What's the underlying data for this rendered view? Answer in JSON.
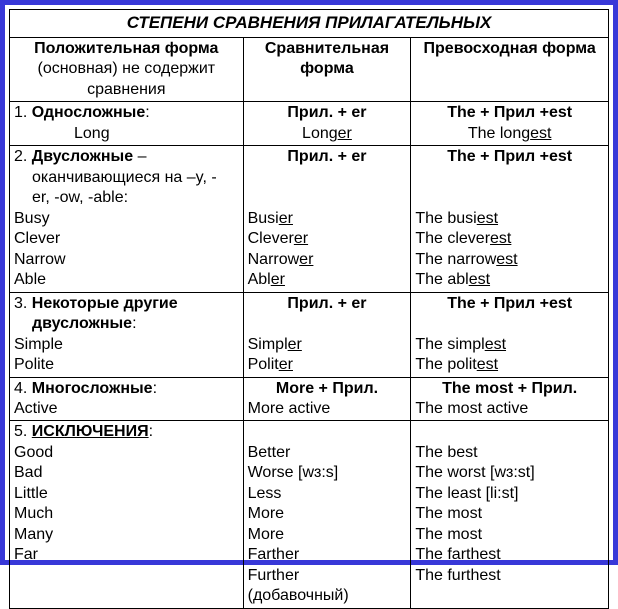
{
  "title": "СТЕПЕНИ СРАВНЕНИЯ ПРИЛАГАТЕЛЬНЫХ",
  "headers": {
    "c1_main": "Положительная форма",
    "c1_sub": "(основная) не содержит сравнения",
    "c2": "Сравнительная форма",
    "c3": "Превосходная форма"
  },
  "r1": {
    "num": "1.  ",
    "title": "Односложные",
    "colon": ":",
    "ex": "Long",
    "c2_rule": "Прил. + er",
    "c2_a": "Long",
    "c2_b": "er",
    "c3_rule": "The + Прил +est",
    "c3_a": "The long",
    "c3_b": "est"
  },
  "r2": {
    "num": "2.  ",
    "title": "Двусложные",
    "dash": " –",
    "desc1": "оканчивающиеся на –y, -",
    "desc2": "er, -ow, -able:",
    "e1": "Busy",
    "e2": "Clever",
    "e3": "Narrow",
    "e4": "Able",
    "c2_rule": "Прил. + er",
    "c2_1a": "Busi",
    "c2_1b": "er",
    "c2_2a": "Clever",
    "c2_2b": "er",
    "c2_3a": "Narrow",
    "c2_3b": "er",
    "c2_4a": "Abl",
    "c2_4b": "er",
    "c3_rule": "The + Прил +est",
    "c3_1a": "The busi",
    "c3_1b": "est",
    "c3_2a": "The clever",
    "c3_2b": "est",
    "c3_3a": "The narrow",
    "c3_3b": "est",
    "c3_4a": "The abl",
    "c3_4b": "est"
  },
  "r3": {
    "num": "3.  ",
    "title1": "Некоторые другие",
    "title2": "двусложные",
    "colon": ":",
    "e1": "Simple",
    "e2": "Polite",
    "c2_rule": "Прил. + er",
    "c2_1a": "Simpl",
    "c2_1b": "er",
    "c2_2a": "Polit",
    "c2_2b": "er",
    "c3_rule": "The + Прил +est",
    "c3_1a": "The simpl",
    "c3_1b": "est",
    "c3_2a": "The  polit",
    "c3_2b": "est"
  },
  "r4": {
    "num": "4.  ",
    "title": "Многосложные",
    "colon": ":",
    "e1": "Active",
    "c2_rule": "More + Прил.",
    "c2_1": "More active",
    "c3_rule": "The most + Прил.",
    "c3_1": "The most active"
  },
  "r5": {
    "num": "5.  ",
    "title": "ИСКЛЮЧЕНИЯ",
    "colon": ":",
    "e1": "Good",
    "e2": "Bad",
    "e3": "Little",
    "e4": "Much",
    "e5": "Many",
    "e6": "Far",
    "c2_1": "Better",
    "c2_2": "Worse [wɜ:s]",
    "c2_3": "Less",
    "c2_4": "More",
    "c2_5": "More",
    "c2_6": "Farther",
    "c2_7": "Further",
    "c2_8": "(добавочный)",
    "c3_1": "The best",
    "c3_2": "The worst [wɜ:st]",
    "c3_3": "The least [li:st]",
    "c3_4": "The most",
    "c3_5": "The most",
    "c3_6": "The farthest",
    "c3_7": "The furthest"
  }
}
